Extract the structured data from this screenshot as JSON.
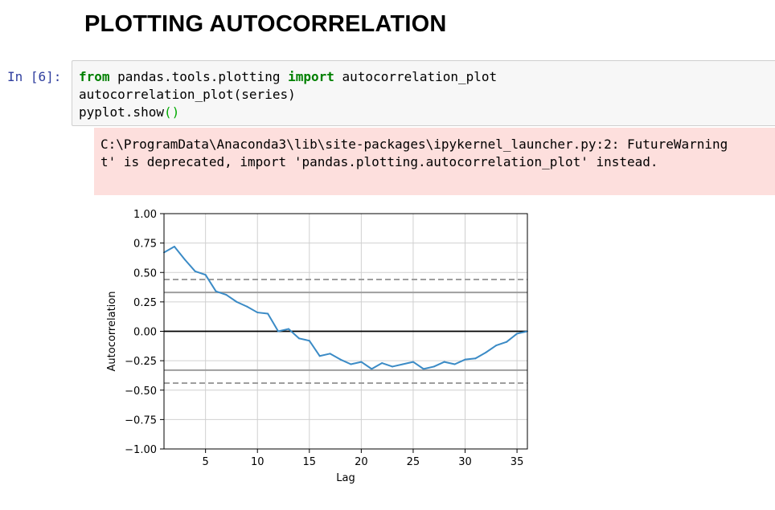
{
  "heading": "PLOTTING AUTOCORRELATION",
  "cell": {
    "prompt": "In [6]:",
    "code": [
      [
        {
          "t": "from",
          "c": "kw"
        },
        {
          "t": " pandas.tools.plotting "
        },
        {
          "t": "import",
          "c": "kw"
        },
        {
          "t": " autocorrelation_plot"
        }
      ],
      [
        {
          "t": "autocorrelation_plot(series)"
        }
      ],
      [
        {
          "t": "pyplot.show"
        },
        {
          "t": "()",
          "c": "paren"
        }
      ]
    ]
  },
  "output": {
    "stderr_lines": [
      "C:\\ProgramData\\Anaconda3\\lib\\site-packages\\ipykernel_launcher.py:2: FutureWarning",
      "t' is deprecated, import 'pandas.plotting.autocorrelation_plot' instead."
    ]
  },
  "chart_data": {
    "type": "line",
    "xlabel": "Lag",
    "ylabel": "Autocorrelation",
    "xlim": [
      1,
      36
    ],
    "ylim": [
      -1.0,
      1.0
    ],
    "xticks": [
      5,
      10,
      15,
      20,
      25,
      30,
      35
    ],
    "yticks": [
      1.0,
      0.75,
      0.5,
      0.25,
      0.0,
      -0.25,
      -0.5,
      -0.75,
      -1.0
    ],
    "ytick_labels": [
      "1.00",
      "0.75",
      "0.50",
      "0.25",
      "0.00",
      "−0.25",
      "−0.50",
      "−0.75",
      "−1.00"
    ],
    "grid": true,
    "x": [
      1,
      2,
      3,
      4,
      5,
      6,
      7,
      8,
      9,
      10,
      11,
      12,
      13,
      14,
      15,
      16,
      17,
      18,
      19,
      20,
      21,
      22,
      23,
      24,
      25,
      26,
      27,
      28,
      29,
      30,
      31,
      32,
      33,
      34,
      35,
      36
    ],
    "values": [
      0.67,
      0.72,
      0.61,
      0.51,
      0.48,
      0.34,
      0.31,
      0.25,
      0.21,
      0.16,
      0.15,
      0.0,
      0.02,
      -0.06,
      -0.08,
      -0.21,
      -0.19,
      -0.24,
      -0.28,
      -0.26,
      -0.32,
      -0.27,
      -0.3,
      -0.28,
      -0.26,
      -0.32,
      -0.3,
      -0.26,
      -0.28,
      -0.24,
      -0.23,
      -0.18,
      -0.12,
      -0.09,
      -0.02,
      0.0
    ],
    "reference_lines": [
      {
        "y": 0.0,
        "style": "solid",
        "color": "#000000"
      },
      {
        "y": 0.33,
        "style": "solid",
        "color": "#9e9e9e"
      },
      {
        "y": -0.33,
        "style": "solid",
        "color": "#9e9e9e"
      },
      {
        "y": 0.44,
        "style": "dashed",
        "color": "#9e9e9e"
      },
      {
        "y": -0.44,
        "style": "dashed",
        "color": "#9e9e9e"
      }
    ],
    "line_color": "#3b8bc6"
  }
}
